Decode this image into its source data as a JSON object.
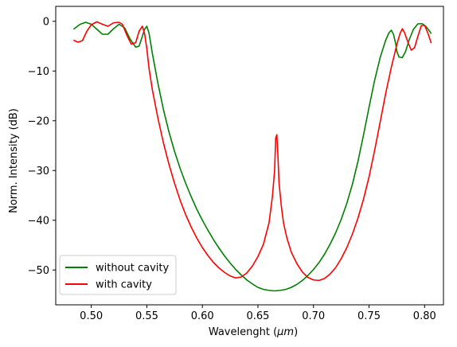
{
  "chart_data": {
    "type": "line",
    "title": "",
    "xlabel": "Wavelenght",
    "xlabel_unit": "μm",
    "ylabel": "Norm. Intensity (dB)",
    "xlim": [
      0.468,
      0.817
    ],
    "ylim": [
      -57,
      3
    ],
    "xticks": [
      0.5,
      0.55,
      0.6,
      0.65,
      0.7,
      0.75,
      0.8
    ],
    "xtick_labels": [
      "0.50",
      "0.55",
      "0.60",
      "0.65",
      "0.70",
      "0.75",
      "0.80"
    ],
    "yticks": [
      0,
      -10,
      -20,
      -30,
      -40,
      -50
    ],
    "ytick_labels": [
      "0",
      "−10",
      "−20",
      "−30",
      "−40",
      "−50"
    ],
    "grid": false,
    "legend_position": "lower-left",
    "series": [
      {
        "name": "without cavity",
        "color": "#008000",
        "x": [
          0.484,
          0.49,
          0.495,
          0.5,
          0.505,
          0.51,
          0.515,
          0.52,
          0.525,
          0.53,
          0.535,
          0.54,
          0.543,
          0.546,
          0.548,
          0.55,
          0.552,
          0.555,
          0.56,
          0.565,
          0.57,
          0.575,
          0.58,
          0.585,
          0.59,
          0.595,
          0.6,
          0.605,
          0.61,
          0.615,
          0.62,
          0.625,
          0.63,
          0.635,
          0.64,
          0.645,
          0.65,
          0.655,
          0.66,
          0.665,
          0.67,
          0.675,
          0.68,
          0.685,
          0.69,
          0.695,
          0.7,
          0.705,
          0.71,
          0.715,
          0.72,
          0.725,
          0.73,
          0.735,
          0.74,
          0.745,
          0.75,
          0.755,
          0.76,
          0.765,
          0.768,
          0.77,
          0.772,
          0.774,
          0.775,
          0.777,
          0.78,
          0.783,
          0.786,
          0.79,
          0.794,
          0.798,
          0.801,
          0.804,
          0.806
        ],
        "y": [
          -1.6,
          -0.6,
          -0.2,
          -0.6,
          -1.6,
          -2.6,
          -2.6,
          -1.5,
          -0.6,
          -1.3,
          -3.6,
          -5.2,
          -5.0,
          -3.0,
          -1.6,
          -1.0,
          -2.4,
          -6.5,
          -12.5,
          -17.8,
          -22.3,
          -26.2,
          -29.6,
          -32.6,
          -35.3,
          -37.8,
          -40.0,
          -42.0,
          -43.9,
          -45.6,
          -47.2,
          -48.6,
          -49.9,
          -51.0,
          -52.0,
          -52.8,
          -53.5,
          -53.9,
          -54.1,
          -54.2,
          -54.1,
          -53.9,
          -53.5,
          -52.9,
          -52.1,
          -51.1,
          -49.9,
          -48.5,
          -46.8,
          -44.8,
          -42.5,
          -39.8,
          -36.6,
          -32.8,
          -28.2,
          -22.9,
          -17.3,
          -11.9,
          -7.3,
          -3.8,
          -2.3,
          -1.8,
          -2.6,
          -4.5,
          -6.0,
          -7.2,
          -7.3,
          -6.0,
          -3.8,
          -1.6,
          -0.5,
          -0.5,
          -1.0,
          -1.8,
          -2.5
        ]
      },
      {
        "name": "with cavity",
        "color": "#ff0000",
        "x": [
          0.484,
          0.488,
          0.492,
          0.496,
          0.5,
          0.505,
          0.51,
          0.515,
          0.52,
          0.525,
          0.528,
          0.532,
          0.536,
          0.54,
          0.543,
          0.546,
          0.548,
          0.55,
          0.552,
          0.555,
          0.56,
          0.565,
          0.57,
          0.575,
          0.58,
          0.585,
          0.59,
          0.595,
          0.6,
          0.605,
          0.61,
          0.615,
          0.62,
          0.625,
          0.63,
          0.635,
          0.64,
          0.645,
          0.65,
          0.655,
          0.66,
          0.663,
          0.665,
          0.666,
          0.667,
          0.668,
          0.669,
          0.671,
          0.673,
          0.676,
          0.68,
          0.685,
          0.69,
          0.695,
          0.7,
          0.705,
          0.71,
          0.715,
          0.72,
          0.725,
          0.73,
          0.735,
          0.74,
          0.745,
          0.75,
          0.755,
          0.76,
          0.765,
          0.77,
          0.775,
          0.778,
          0.78,
          0.782,
          0.785,
          0.788,
          0.791,
          0.794,
          0.797,
          0.8,
          0.803,
          0.806
        ],
        "y": [
          -3.8,
          -4.2,
          -3.9,
          -2.0,
          -0.7,
          -0.1,
          -0.6,
          -1.0,
          -0.3,
          -0.2,
          -0.6,
          -2.8,
          -4.6,
          -4.3,
          -2.0,
          -1.0,
          -2.5,
          -5.5,
          -9.5,
          -13.8,
          -19.5,
          -24.5,
          -28.8,
          -32.6,
          -36.0,
          -38.9,
          -41.4,
          -43.6,
          -45.5,
          -47.1,
          -48.5,
          -49.6,
          -50.5,
          -51.2,
          -51.6,
          -51.4,
          -50.6,
          -49.2,
          -47.3,
          -44.8,
          -40.5,
          -35.3,
          -30.0,
          -23.5,
          -22.8,
          -27.0,
          -32.5,
          -37.0,
          -40.5,
          -43.5,
          -46.4,
          -48.7,
          -50.4,
          -51.5,
          -52.0,
          -52.1,
          -51.7,
          -50.8,
          -49.5,
          -47.7,
          -45.5,
          -42.8,
          -39.6,
          -35.8,
          -31.3,
          -26.0,
          -20.3,
          -14.5,
          -9.3,
          -4.7,
          -2.4,
          -1.5,
          -2.3,
          -4.2,
          -5.8,
          -5.3,
          -3.0,
          -0.9,
          -0.8,
          -2.4,
          -4.4
        ]
      }
    ]
  }
}
